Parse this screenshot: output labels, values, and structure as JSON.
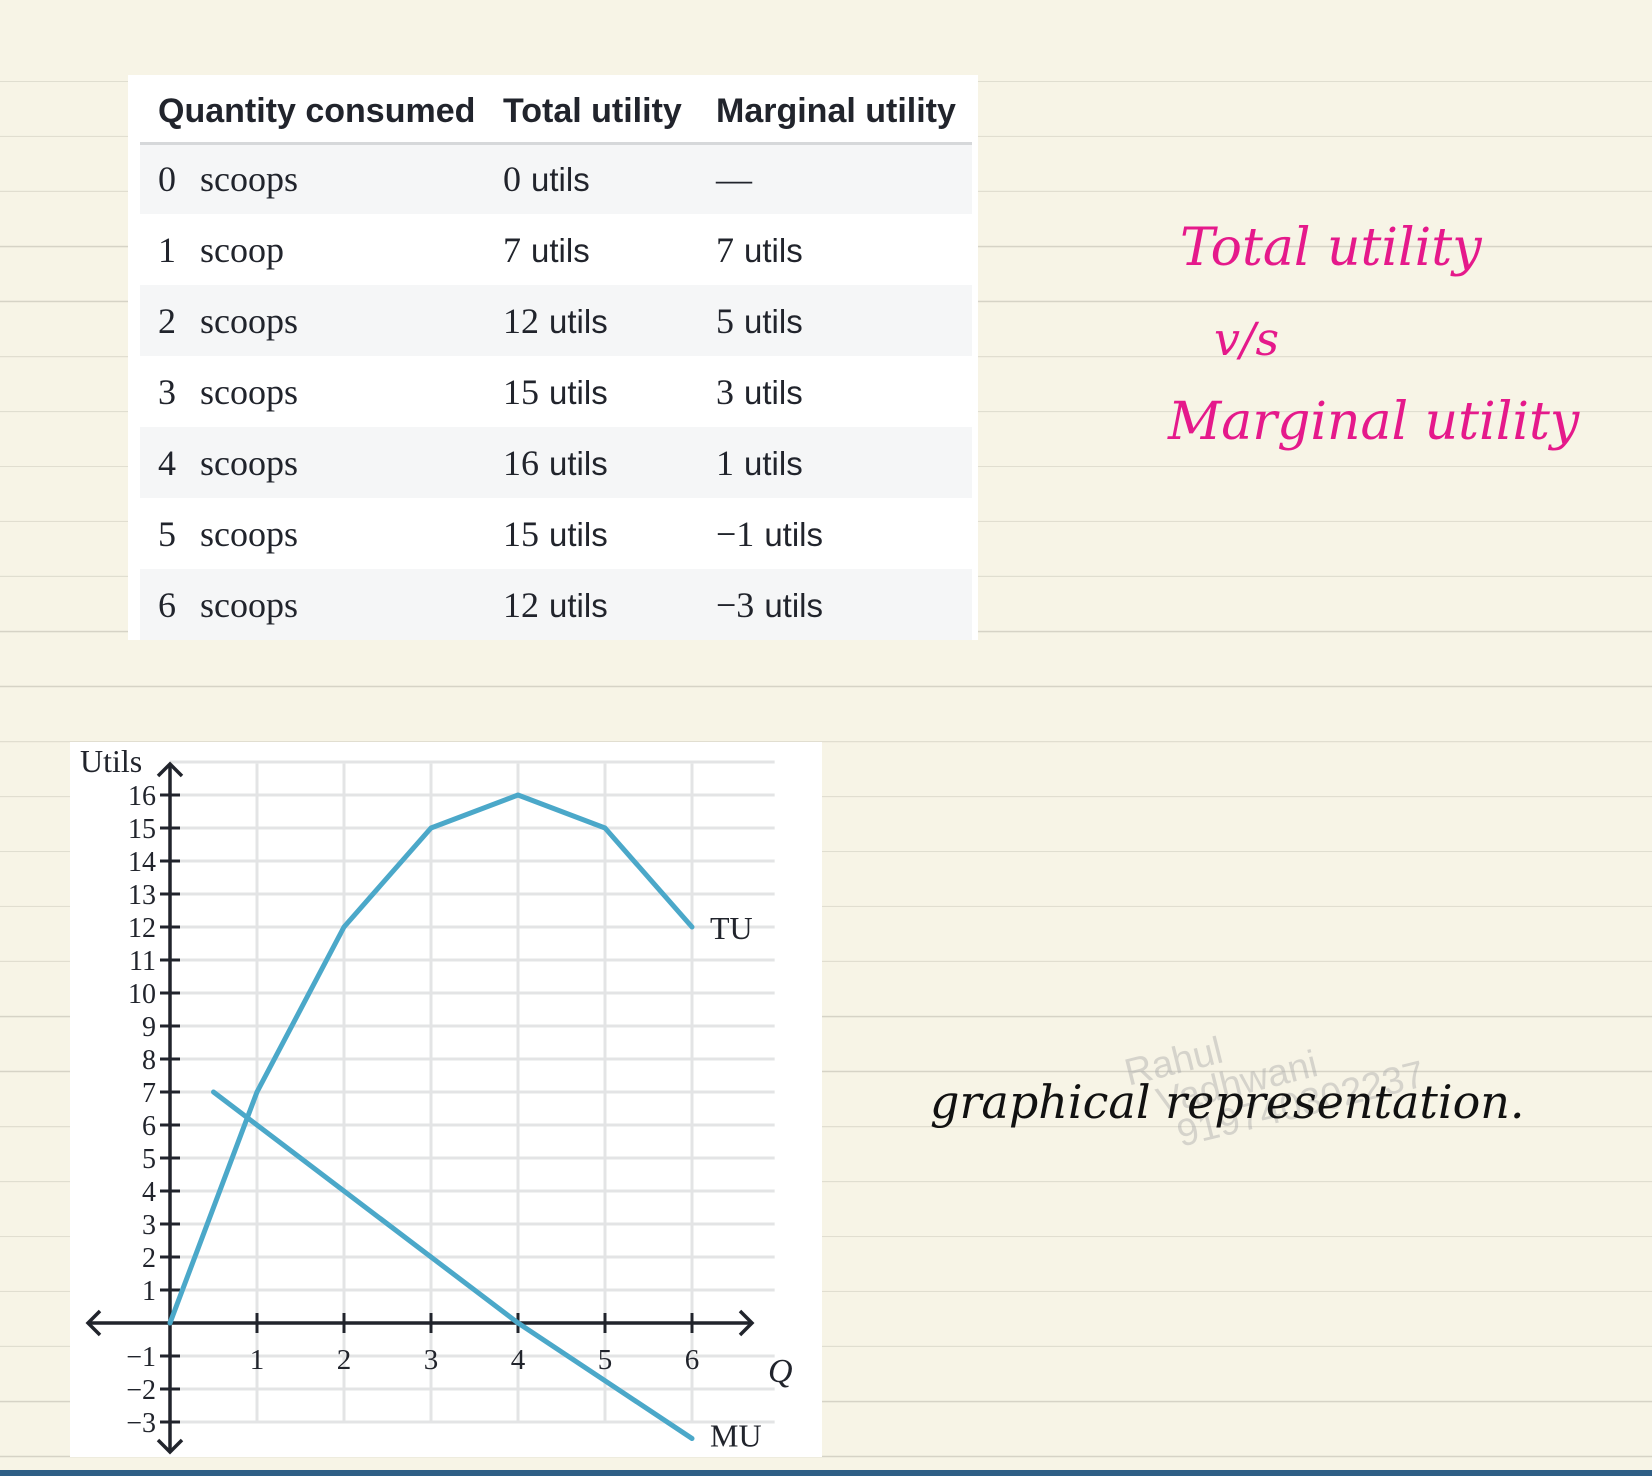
{
  "table": {
    "headers": [
      "Quantity consumed",
      "Total utility",
      "Marginal utility"
    ],
    "rows": [
      {
        "qty": "0",
        "qty_unit": "scoops",
        "tu": "0",
        "tu_unit": "utils",
        "mu": "—",
        "mu_unit": ""
      },
      {
        "qty": "1",
        "qty_unit": "scoop",
        "tu": "7",
        "tu_unit": "utils",
        "mu": "7",
        "mu_unit": "utils"
      },
      {
        "qty": "2",
        "qty_unit": "scoops",
        "tu": "12",
        "tu_unit": "utils",
        "mu": "5",
        "mu_unit": "utils"
      },
      {
        "qty": "3",
        "qty_unit": "scoops",
        "tu": "15",
        "tu_unit": "utils",
        "mu": "3",
        "mu_unit": "utils"
      },
      {
        "qty": "4",
        "qty_unit": "scoops",
        "tu": "16",
        "tu_unit": "utils",
        "mu": "1",
        "mu_unit": "utils"
      },
      {
        "qty": "5",
        "qty_unit": "scoops",
        "tu": "15",
        "tu_unit": "utils",
        "mu": "−1",
        "mu_unit": "utils"
      },
      {
        "qty": "6",
        "qty_unit": "scoops",
        "tu": "12",
        "tu_unit": "utils",
        "mu": "−3",
        "mu_unit": "utils"
      }
    ]
  },
  "notes": {
    "title_line1": "Total utility",
    "title_line2": "v/s",
    "title_line3": "Marginal utility",
    "caption": "graphical representation."
  },
  "watermark": {
    "line1": "Rahul",
    "line2": "Vadhwani",
    "line3": "919740302237"
  },
  "colors": {
    "curve": "#4ba8c9",
    "ink_pink": "#e5198b",
    "ink_black": "#111111"
  },
  "chart_data": {
    "type": "line",
    "title": "",
    "xlabel": "Q",
    "ylabel": "Utils",
    "xlim": [
      0,
      7
    ],
    "ylim": [
      -3,
      16
    ],
    "x_ticks": [
      1,
      2,
      3,
      4,
      5,
      6
    ],
    "y_ticks": [
      -3,
      -2,
      -1,
      1,
      2,
      3,
      4,
      5,
      6,
      7,
      8,
      9,
      10,
      11,
      12,
      13,
      14,
      15,
      16
    ],
    "y_tick_labels": [
      "−3",
      "−2",
      "−1",
      "1",
      "2",
      "3",
      "4",
      "5",
      "6",
      "7",
      "8",
      "9",
      "10",
      "11",
      "12",
      "13",
      "14",
      "15",
      "16"
    ],
    "grid": true,
    "series": [
      {
        "name": "TU",
        "x": [
          0,
          1,
          2,
          3,
          4,
          5,
          6
        ],
        "y": [
          0,
          7,
          12,
          15,
          16,
          15,
          12
        ]
      },
      {
        "name": "MU",
        "x": [
          0.5,
          4,
          6
        ],
        "y": [
          7,
          0,
          -3.5
        ]
      }
    ]
  }
}
